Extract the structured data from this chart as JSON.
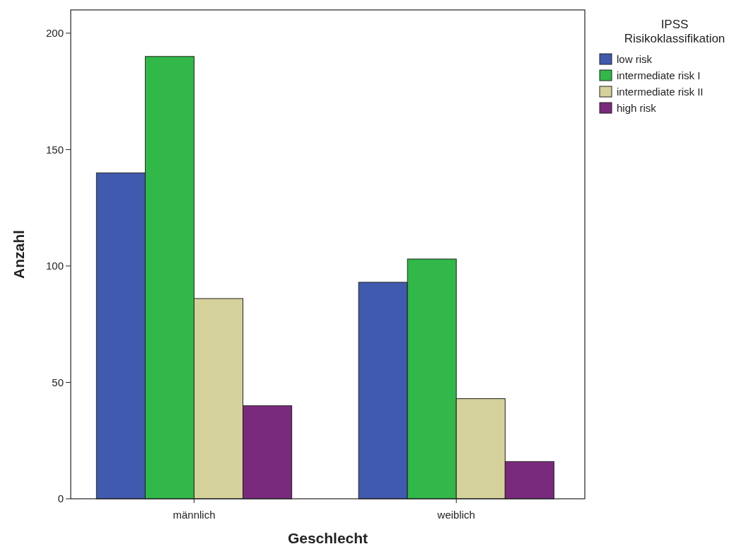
{
  "chart_data": {
    "type": "bar",
    "xlabel": "Geschlecht",
    "ylabel": "Anzahl",
    "legend_title": "IPSS Risikoklassifikation",
    "categories": [
      "männlich",
      "weiblich"
    ],
    "series": [
      {
        "name": "low risk",
        "color": "#3f5aae",
        "values": [
          140,
          93
        ]
      },
      {
        "name": "intermediate risk I",
        "color": "#31b848",
        "values": [
          190,
          103
        ]
      },
      {
        "name": "intermediate risk II",
        "color": "#d5d19a",
        "values": [
          86,
          43
        ]
      },
      {
        "name": "high risk",
        "color": "#7a2a7d",
        "values": [
          40,
          16
        ]
      }
    ],
    "ylim": [
      0,
      210
    ],
    "yticks": [
      0,
      50,
      100,
      150,
      200
    ],
    "grid": false,
    "legend": "top right"
  }
}
